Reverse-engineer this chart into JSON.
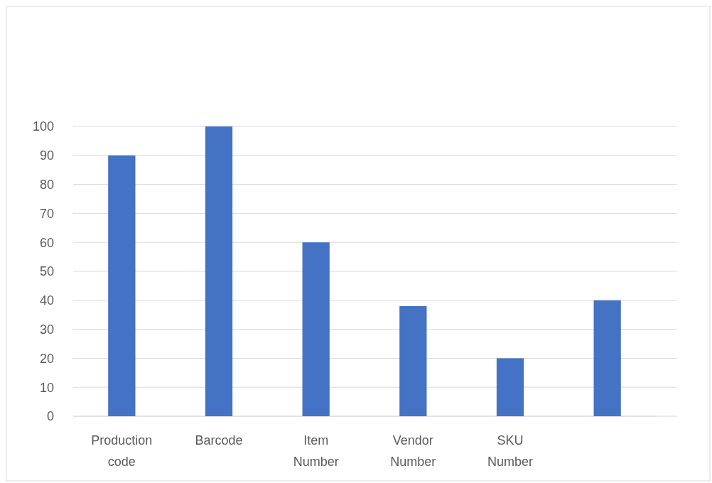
{
  "chart_data": {
    "type": "bar",
    "categories": [
      "Production code",
      "Barcode",
      "Item Number",
      "Vendor Number",
      "SKU Number",
      null
    ],
    "values": [
      90,
      100,
      60,
      38,
      20,
      40
    ],
    "color": "#4472c4",
    "ylim": [
      0,
      100
    ],
    "yticks": [
      0,
      10,
      20,
      30,
      40,
      50,
      60,
      70,
      80,
      90,
      100
    ],
    "grid": "y"
  }
}
